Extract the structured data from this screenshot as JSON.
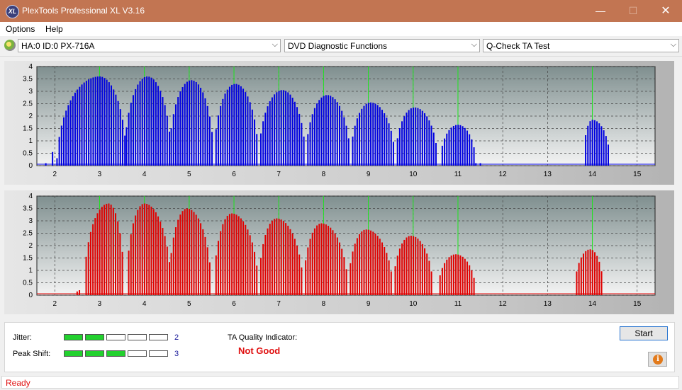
{
  "window": {
    "title": "PlexTools Professional XL V3.16",
    "icon_text": "XL",
    "minimize_glyph": "—",
    "maximize_glyph": "☐",
    "close_glyph": "✕"
  },
  "menu": [
    "Options",
    "Help"
  ],
  "toolbar": {
    "drive": "HA:0 ID:0  PX-716A",
    "function": "DVD Diagnostic Functions",
    "test": "Q-Check TA Test",
    "dropdown_glyph": "⌵"
  },
  "chart_data": [
    {
      "type": "bar",
      "bar_color": "#0000e0",
      "xlim": [
        1.6,
        15.4
      ],
      "ylim": [
        0,
        4
      ],
      "xticks": [
        "2",
        "3",
        "4",
        "5",
        "6",
        "7",
        "8",
        "9",
        "10",
        "11",
        "12",
        "13",
        "14",
        "15"
      ],
      "yticks": [
        "0",
        "0.5",
        "1",
        "1.5",
        "2",
        "2.5",
        "3",
        "3.5",
        "4"
      ],
      "green_markers": [
        3,
        4,
        5,
        6,
        7,
        8,
        9,
        10,
        11,
        14
      ],
      "grid": true,
      "humps": [
        {
          "from": 2.05,
          "to": 3.6,
          "peak_x": 3.0,
          "peak": 3.6
        },
        {
          "from": 3.55,
          "to": 4.6,
          "peak_x": 4.07,
          "peak": 3.6
        },
        {
          "from": 4.55,
          "to": 5.55,
          "peak_x": 5.05,
          "peak": 3.45
        },
        {
          "from": 5.55,
          "to": 6.55,
          "peak_x": 6.03,
          "peak": 3.3
        },
        {
          "from": 6.55,
          "to": 7.6,
          "peak_x": 7.08,
          "peak": 3.05
        },
        {
          "from": 7.6,
          "to": 8.6,
          "peak_x": 8.08,
          "peak": 2.85
        },
        {
          "from": 8.6,
          "to": 9.6,
          "peak_x": 9.05,
          "peak": 2.55
        },
        {
          "from": 9.6,
          "to": 10.55,
          "peak_x": 10.03,
          "peak": 2.35
        },
        {
          "from": 10.6,
          "to": 11.4,
          "peak_x": 11.0,
          "peak": 1.65
        },
        {
          "from": 13.8,
          "to": 14.4,
          "peak_x": 14.0,
          "peak": 1.85
        }
      ],
      "extra_bars": [
        [
          1.8,
          0.1
        ],
        [
          1.95,
          0.55
        ],
        [
          2.05,
          0.3
        ],
        [
          11.4,
          0.1
        ],
        [
          11.5,
          0.1
        ]
      ]
    },
    {
      "type": "bar",
      "bar_color": "#e00000",
      "xlim": [
        1.6,
        15.4
      ],
      "ylim": [
        0,
        4
      ],
      "xticks": [
        "2",
        "3",
        "4",
        "5",
        "6",
        "7",
        "8",
        "9",
        "10",
        "11",
        "12",
        "13",
        "14",
        "15"
      ],
      "yticks": [
        "0",
        "0.5",
        "1",
        "1.5",
        "2",
        "2.5",
        "3",
        "3.5",
        "4"
      ],
      "green_markers": [
        3,
        4,
        5,
        6,
        7,
        8,
        9,
        10,
        11,
        14
      ],
      "grid": true,
      "humps": [
        {
          "from": 2.65,
          "to": 3.55,
          "peak_x": 3.2,
          "peak": 3.7
        },
        {
          "from": 3.6,
          "to": 4.6,
          "peak_x": 4.0,
          "peak": 3.7
        },
        {
          "from": 4.55,
          "to": 5.5,
          "peak_x": 4.95,
          "peak": 3.5
        },
        {
          "from": 5.55,
          "to": 6.55,
          "peak_x": 5.95,
          "peak": 3.3
        },
        {
          "from": 6.55,
          "to": 7.55,
          "peak_x": 6.95,
          "peak": 3.1
        },
        {
          "from": 7.55,
          "to": 8.55,
          "peak_x": 7.95,
          "peak": 2.9
        },
        {
          "from": 8.55,
          "to": 9.55,
          "peak_x": 8.95,
          "peak": 2.65
        },
        {
          "from": 9.55,
          "to": 10.45,
          "peak_x": 9.95,
          "peak": 2.4
        },
        {
          "from": 10.55,
          "to": 11.4,
          "peak_x": 10.95,
          "peak": 1.65
        },
        {
          "from": 13.6,
          "to": 14.25,
          "peak_x": 13.95,
          "peak": 1.85
        }
      ],
      "extra_bars": [
        [
          2.5,
          0.15
        ],
        [
          2.55,
          0.2
        ]
      ]
    }
  ],
  "jitter": {
    "label": "Jitter:",
    "value": "2",
    "segments": [
      true,
      true,
      false,
      false,
      false
    ]
  },
  "peak_shift": {
    "label": "Peak Shift:",
    "value": "3",
    "segments": [
      true,
      true,
      true,
      false,
      false
    ]
  },
  "ta_quality": {
    "label": "TA Quality Indicator:",
    "verdict": "Not Good"
  },
  "start_label": "Start",
  "info_glyph": "i",
  "status": "Ready"
}
